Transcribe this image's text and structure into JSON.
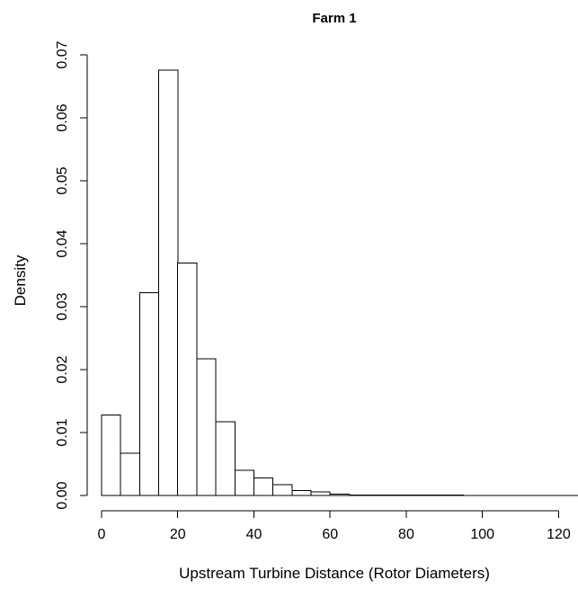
{
  "chart_data": {
    "type": "bar",
    "title": "Farm 1",
    "xlabel": "Upstream Turbine Distance (Rotor Diameters)",
    "ylabel": "Density",
    "xlim": [
      0,
      125
    ],
    "ylim": [
      0,
      0.07
    ],
    "x_ticks": [
      "0",
      "20",
      "40",
      "60",
      "80",
      "100",
      "120"
    ],
    "y_ticks": [
      "0.00",
      "0.01",
      "0.02",
      "0.03",
      "0.04",
      "0.05",
      "0.06",
      "0.07"
    ],
    "bin_width": 5,
    "bins": [
      {
        "start": 0,
        "end": 5,
        "density": 0.0128
      },
      {
        "start": 5,
        "end": 10,
        "density": 0.0067
      },
      {
        "start": 10,
        "end": 15,
        "density": 0.0322
      },
      {
        "start": 15,
        "end": 20,
        "density": 0.0676
      },
      {
        "start": 20,
        "end": 25,
        "density": 0.0369
      },
      {
        "start": 25,
        "end": 30,
        "density": 0.0217
      },
      {
        "start": 30,
        "end": 35,
        "density": 0.0117
      },
      {
        "start": 35,
        "end": 40,
        "density": 0.004
      },
      {
        "start": 40,
        "end": 45,
        "density": 0.0028
      },
      {
        "start": 45,
        "end": 50,
        "density": 0.0017
      },
      {
        "start": 50,
        "end": 55,
        "density": 0.0008
      },
      {
        "start": 55,
        "end": 60,
        "density": 0.0006
      },
      {
        "start": 60,
        "end": 65,
        "density": 0.0002
      },
      {
        "start": 65,
        "end": 70,
        "density": 0.0001
      },
      {
        "start": 70,
        "end": 75,
        "density": 0.0001
      },
      {
        "start": 75,
        "end": 80,
        "density": 5e-05
      },
      {
        "start": 80,
        "end": 85,
        "density": 0.0001
      },
      {
        "start": 85,
        "end": 90,
        "density": 8e-05
      },
      {
        "start": 90,
        "end": 95,
        "density": 5e-05
      },
      {
        "start": 95,
        "end": 100,
        "density": 3e-05
      },
      {
        "start": 100,
        "end": 105,
        "density": 3e-05
      },
      {
        "start": 105,
        "end": 110,
        "density": 3e-05
      },
      {
        "start": 110,
        "end": 115,
        "density": 2e-05
      },
      {
        "start": 115,
        "end": 120,
        "density": 1e-05
      },
      {
        "start": 120,
        "end": 125,
        "density": 1e-05
      }
    ],
    "grid": false,
    "legend": "none"
  }
}
